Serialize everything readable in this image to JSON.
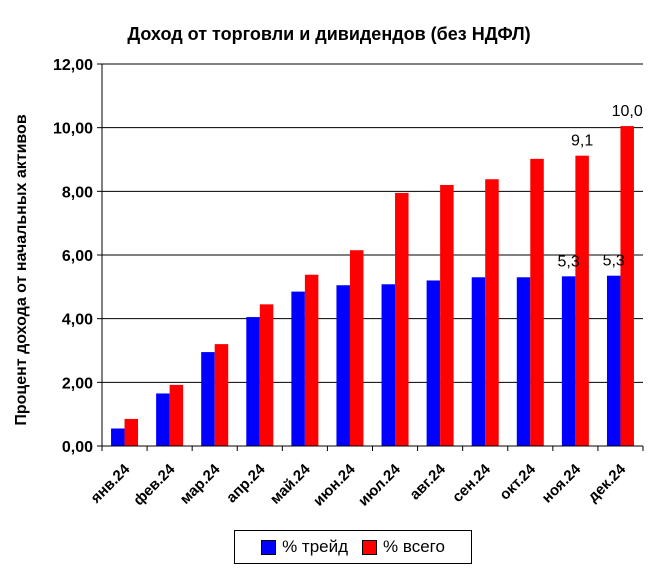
{
  "colors": {
    "trade": "#0000ff",
    "total": "#ff0000"
  },
  "chart_data": {
    "type": "bar",
    "title": "Доход от торговли и дивидендов (без НДФЛ)",
    "xlabel": "",
    "ylabel": "Процент дохода от начальных активов",
    "ylim": [
      0,
      12
    ],
    "yticks": [
      "0,00",
      "2,00",
      "4,00",
      "6,00",
      "8,00",
      "10,00",
      "12,00"
    ],
    "grid": true,
    "legend_position": "bottom",
    "categories": [
      "янв.24",
      "фев.24",
      "мар.24",
      "апр.24",
      "май.24",
      "июн.24",
      "июл.24",
      "авг.24",
      "сен.24",
      "окт.24",
      "ноя.24",
      "дек.24"
    ],
    "series": [
      {
        "name": "% трейд",
        "values": [
          0.55,
          1.65,
          2.95,
          4.05,
          4.85,
          5.05,
          5.08,
          5.2,
          5.3,
          5.3,
          5.33,
          5.35
        ]
      },
      {
        "name": "% всего",
        "values": [
          0.85,
          1.92,
          3.2,
          4.45,
          5.38,
          6.15,
          7.95,
          8.2,
          8.38,
          9.02,
          9.12,
          10.05
        ]
      }
    ],
    "data_labels": [
      {
        "series": 0,
        "index": 10,
        "text": "5,3"
      },
      {
        "series": 0,
        "index": 11,
        "text": "5,3"
      },
      {
        "series": 1,
        "index": 10,
        "text": "9,1"
      },
      {
        "series": 1,
        "index": 11,
        "text": "10,0"
      }
    ]
  }
}
